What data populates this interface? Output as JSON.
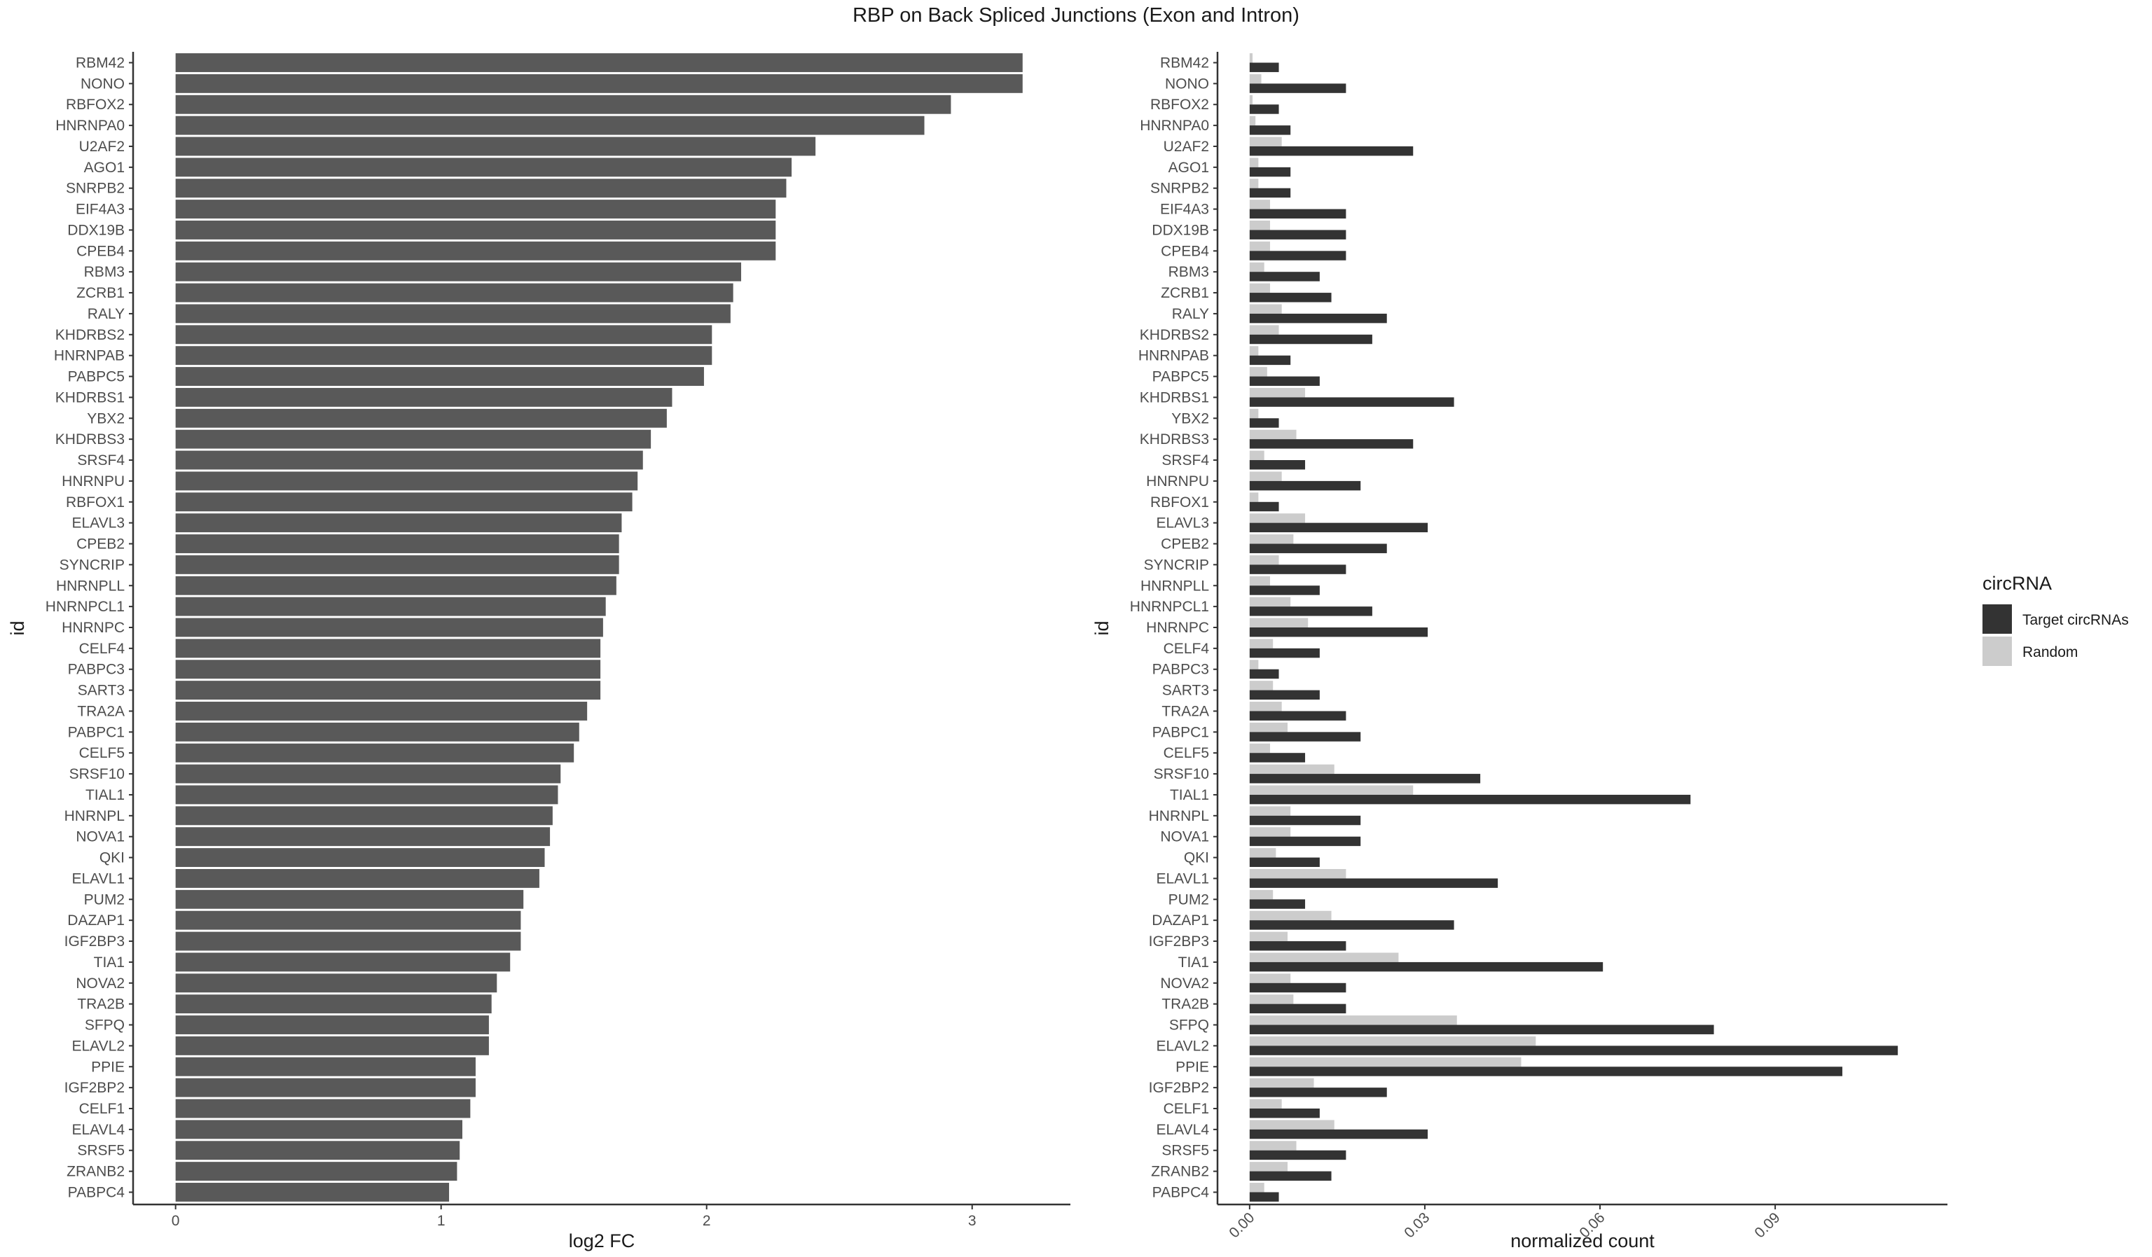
{
  "title": "RBP on Back Spliced Junctions (Exon and Intron)",
  "colors": {
    "left_bar": "#595959",
    "target": "#333333",
    "random": "#cccccc",
    "axis": "#333333"
  },
  "chart_data": [
    {
      "type": "bar",
      "orientation": "horizontal",
      "xlabel": "log2 FC",
      "ylabel": "id",
      "xlim": [
        -0.16,
        3.37
      ],
      "xticks": [
        0,
        1,
        2,
        3
      ],
      "xtick_labels": [
        "0",
        "1",
        "2",
        "3"
      ],
      "categories": [
        "RBM42",
        "NONO",
        "RBFOX2",
        "HNRNPA0",
        "U2AF2",
        "AGO1",
        "SNRPB2",
        "EIF4A3",
        "DDX19B",
        "CPEB4",
        "RBM3",
        "ZCRB1",
        "RALY",
        "KHDRBS2",
        "HNRNPAB",
        "PABPC5",
        "KHDRBS1",
        "YBX2",
        "KHDRBS3",
        "SRSF4",
        "HNRNPU",
        "RBFOX1",
        "ELAVL3",
        "CPEB2",
        "SYNCRIP",
        "HNRNPLL",
        "HNRNPCL1",
        "HNRNPC",
        "CELF4",
        "PABPC3",
        "SART3",
        "TRA2A",
        "PABPC1",
        "CELF5",
        "SRSF10",
        "TIAL1",
        "HNRNPL",
        "NOVA1",
        "QKI",
        "ELAVL1",
        "PUM2",
        "DAZAP1",
        "IGF2BP3",
        "TIA1",
        "NOVA2",
        "TRA2B",
        "SFPQ",
        "ELAVL2",
        "PPIE",
        "IGF2BP2",
        "CELF1",
        "ELAVL4",
        "SRSF5",
        "ZRANB2",
        "PABPC4"
      ],
      "values": [
        3.19,
        3.19,
        2.92,
        2.82,
        2.41,
        2.32,
        2.3,
        2.26,
        2.26,
        2.26,
        2.13,
        2.1,
        2.09,
        2.02,
        2.02,
        1.99,
        1.87,
        1.85,
        1.79,
        1.76,
        1.74,
        1.72,
        1.68,
        1.67,
        1.67,
        1.66,
        1.62,
        1.61,
        1.6,
        1.6,
        1.6,
        1.55,
        1.52,
        1.5,
        1.45,
        1.44,
        1.42,
        1.41,
        1.39,
        1.37,
        1.31,
        1.3,
        1.3,
        1.26,
        1.21,
        1.19,
        1.18,
        1.18,
        1.13,
        1.13,
        1.11,
        1.08,
        1.07,
        1.06,
        1.03
      ]
    },
    {
      "type": "bar",
      "orientation": "horizontal",
      "xlabel": "normalized count",
      "ylabel": "id",
      "xlim": [
        -0.0055,
        0.1195
      ],
      "xticks": [
        0,
        0.03,
        0.06,
        0.09
      ],
      "xtick_labels": [
        "0.00",
        "0.03",
        "0.06",
        "0.09"
      ],
      "legend_title": "circRNA",
      "legend_position": "right",
      "categories": [
        "RBM42",
        "NONO",
        "RBFOX2",
        "HNRNPA0",
        "U2AF2",
        "AGO1",
        "SNRPB2",
        "EIF4A3",
        "DDX19B",
        "CPEB4",
        "RBM3",
        "ZCRB1",
        "RALY",
        "KHDRBS2",
        "HNRNPAB",
        "PABPC5",
        "KHDRBS1",
        "YBX2",
        "KHDRBS3",
        "SRSF4",
        "HNRNPU",
        "RBFOX1",
        "ELAVL3",
        "CPEB2",
        "SYNCRIP",
        "HNRNPLL",
        "HNRNPCL1",
        "HNRNPC",
        "CELF4",
        "PABPC3",
        "SART3",
        "TRA2A",
        "PABPC1",
        "CELF5",
        "SRSF10",
        "TIAL1",
        "HNRNPL",
        "NOVA1",
        "QKI",
        "ELAVL1",
        "PUM2",
        "DAZAP1",
        "IGF2BP3",
        "TIA1",
        "NOVA2",
        "TRA2B",
        "SFPQ",
        "ELAVL2",
        "PPIE",
        "IGF2BP2",
        "CELF1",
        "ELAVL4",
        "SRSF5",
        "ZRANB2",
        "PABPC4"
      ],
      "series": [
        {
          "name": "Target circRNAs",
          "values": [
            0.005,
            0.0165,
            0.005,
            0.007,
            0.028,
            0.007,
            0.007,
            0.0165,
            0.0165,
            0.0165,
            0.012,
            0.014,
            0.0235,
            0.021,
            0.007,
            0.012,
            0.035,
            0.005,
            0.028,
            0.0095,
            0.019,
            0.005,
            0.0305,
            0.0235,
            0.0165,
            0.012,
            0.021,
            0.0305,
            0.012,
            0.005,
            0.012,
            0.0165,
            0.019,
            0.0095,
            0.0395,
            0.0755,
            0.019,
            0.019,
            0.012,
            0.0425,
            0.0095,
            0.035,
            0.0165,
            0.0605,
            0.0165,
            0.0165,
            0.0795,
            0.111,
            0.1015,
            0.0235,
            0.012,
            0.0305,
            0.0165,
            0.014,
            0.005
          ]
        },
        {
          "name": "Random",
          "values": [
            0.0005,
            0.002,
            0.0005,
            0.001,
            0.0055,
            0.0015,
            0.0015,
            0.0035,
            0.0035,
            0.0035,
            0.0025,
            0.0035,
            0.0055,
            0.005,
            0.0015,
            0.003,
            0.0095,
            0.0015,
            0.008,
            0.0025,
            0.0055,
            0.0015,
            0.0095,
            0.0075,
            0.005,
            0.0035,
            0.007,
            0.01,
            0.004,
            0.0015,
            0.004,
            0.0055,
            0.0065,
            0.0035,
            0.0145,
            0.028,
            0.007,
            0.007,
            0.0045,
            0.0165,
            0.004,
            0.014,
            0.0065,
            0.0255,
            0.007,
            0.0075,
            0.0355,
            0.049,
            0.0465,
            0.011,
            0.0055,
            0.0145,
            0.008,
            0.0065,
            0.0025
          ]
        }
      ]
    }
  ]
}
